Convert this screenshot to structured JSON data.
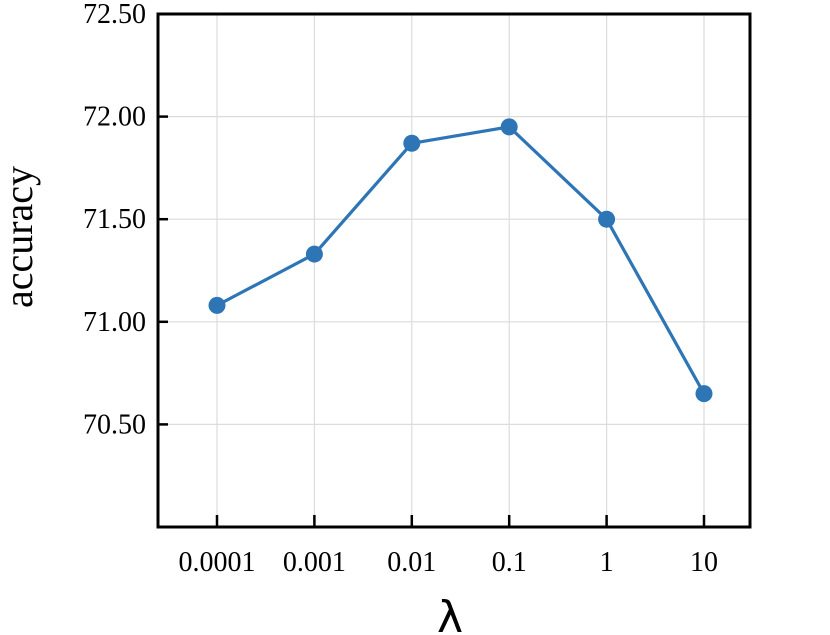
{
  "chart_data": {
    "type": "line",
    "categories": [
      "0.0001",
      "0.001",
      "0.01",
      "0.1",
      "1",
      "10"
    ],
    "series": [
      {
        "values": [
          71.08,
          71.33,
          71.87,
          71.95,
          71.5,
          70.65
        ],
        "color": "#2e75b6"
      }
    ],
    "xlabel": "λ",
    "ylabel": "accuracy",
    "ylim": [
      70.0,
      72.5
    ],
    "yticks": [
      "70.50",
      "71.00",
      "71.50",
      "72.00",
      "72.50"
    ],
    "grid": true,
    "legend": "none"
  }
}
